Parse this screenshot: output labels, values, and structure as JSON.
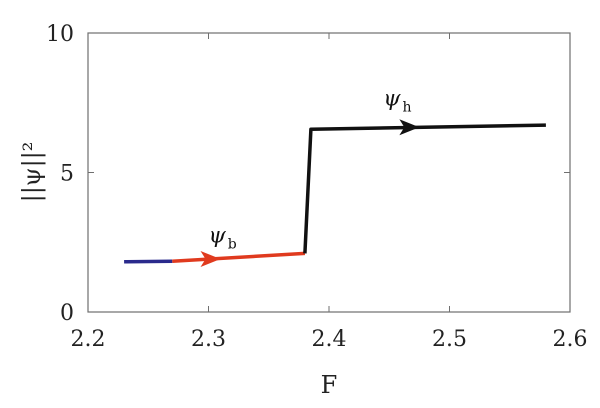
{
  "chart_data": {
    "type": "line",
    "xlabel": "F",
    "ylabel": "||ψ||²",
    "xlim": [
      2.2,
      2.6
    ],
    "ylim": [
      0,
      10
    ],
    "x_ticks": [
      "2.2",
      "2.3",
      "2.4",
      "2.5",
      "2.6"
    ],
    "y_ticks": [
      "0",
      "5",
      "10"
    ],
    "grid": false,
    "series": [
      {
        "color": "#2a2a8c",
        "points": [
          [
            2.23,
            1.8
          ],
          [
            2.27,
            1.82
          ]
        ]
      },
      {
        "color": "#e03a1e",
        "points": [
          [
            2.27,
            1.82
          ],
          [
            2.38,
            2.1
          ]
        ]
      },
      {
        "color": "#111111",
        "points": [
          [
            2.38,
            2.1
          ],
          [
            2.385,
            6.55
          ],
          [
            2.58,
            6.7
          ]
        ]
      }
    ],
    "arrows": [
      {
        "color": "#e03a1e",
        "at": [
          2.305,
          1.9
        ]
      },
      {
        "color": "#111111",
        "at": [
          2.47,
          6.62
        ]
      }
    ],
    "annotations": [
      {
        "text": "ψ",
        "sub": "b",
        "at": [
          2.3,
          2.5
        ]
      },
      {
        "text": "ψ",
        "sub": "h",
        "at": [
          2.445,
          7.4
        ]
      }
    ]
  }
}
